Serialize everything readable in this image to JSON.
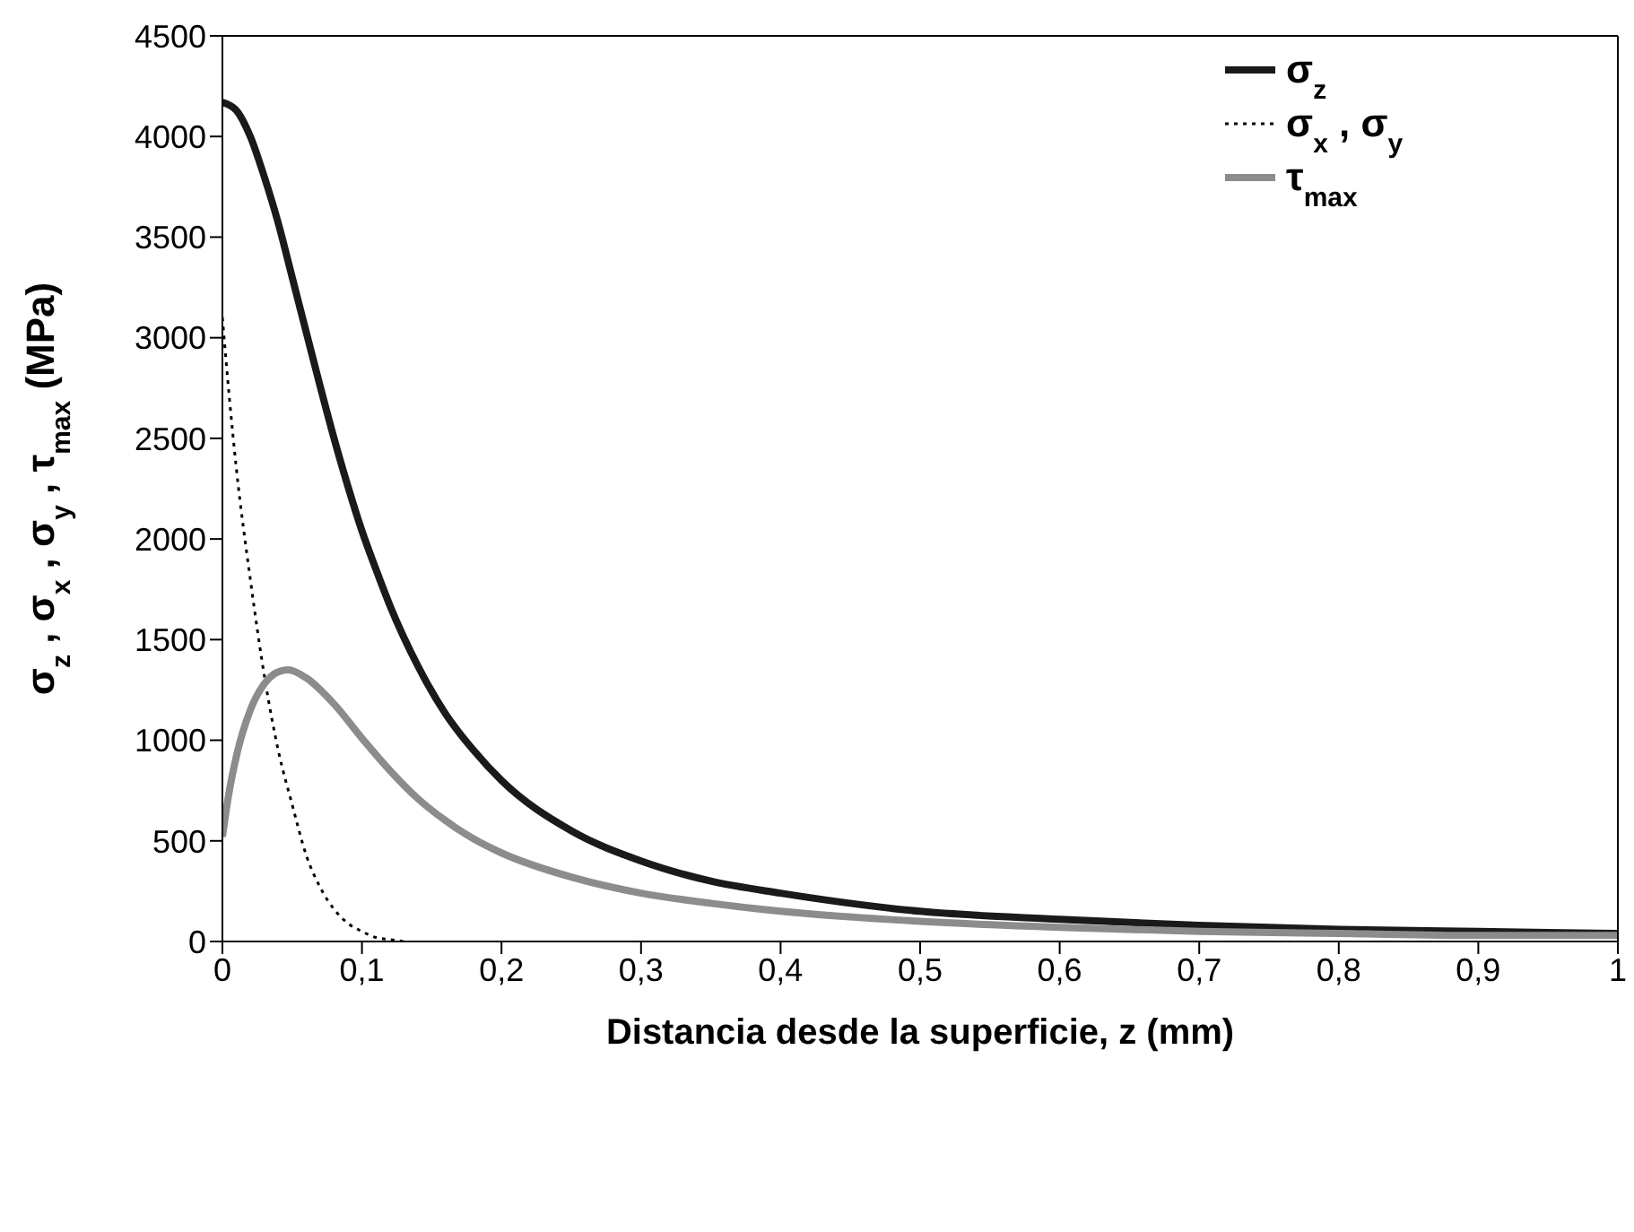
{
  "chart_data": {
    "type": "line",
    "xlabel": "Distancia desde la superficie, z (mm)",
    "ylabel": "σ$_{z}$ , σ$_{x}$ , σ$_{y}$ , τ$_{max}$ (MPa)",
    "xlim": [
      0,
      1
    ],
    "xticks": [
      0,
      {
        "value": 0.1,
        "label": "0,1"
      },
      {
        "value": 0.2,
        "label": "0,2"
      },
      {
        "value": 0.3,
        "label": "0,3"
      },
      {
        "value": 0.4,
        "label": "0,4"
      },
      {
        "value": 0.5,
        "label": "0,5"
      },
      {
        "value": 0.6,
        "label": "0,6"
      },
      {
        "value": 0.7,
        "label": "0,7"
      },
      {
        "value": 0.8,
        "label": "0,8"
      },
      {
        "value": 0.9,
        "label": "0,9"
      },
      1
    ],
    "ylim": [
      0,
      4500
    ],
    "yticks": [
      0,
      500,
      1000,
      1500,
      2000,
      2500,
      3000,
      3500,
      4000,
      4500
    ],
    "legend": "top right",
    "marker": "none",
    "series": [
      {
        "name": "σ$_{z}$",
        "color": "#1a1a1a",
        "line_style": "solid",
        "x": [
          0,
          0.01,
          0.02,
          0.03,
          0.04,
          0.05,
          0.06,
          0.07,
          0.08,
          0.09,
          0.1,
          0.11,
          0.12,
          0.14,
          0.16,
          0.18,
          0.2,
          0.25,
          0.3,
          0.35,
          0.4,
          0.5,
          0.6,
          0.7,
          0.8,
          0.9,
          1
        ],
        "values": [
          4170,
          4130,
          4000,
          3800,
          3570,
          3300,
          3030,
          2760,
          2500,
          2260,
          2040,
          1850,
          1670,
          1370,
          1130,
          950,
          800,
          550,
          400,
          300,
          240,
          150,
          110,
          80,
          60,
          50,
          40
        ]
      },
      {
        "name": "σ$_{x}$ , σ$_{y}$",
        "color": "#000000",
        "line_style": "dotted",
        "x": [
          0,
          0.005,
          0.01,
          0.02,
          0.031,
          0.04,
          0.05,
          0.06,
          0.07,
          0.08,
          0.09,
          0.1,
          0.11,
          0.12,
          0.13
        ],
        "values": [
          3100,
          2700,
          2350,
          1800,
          1280,
          950,
          680,
          430,
          270,
          160,
          90,
          50,
          20,
          10,
          0
        ]
      },
      {
        "name": "τ$_{max}$",
        "color": "#8c8c8c",
        "line_style": "solid",
        "x": [
          0,
          0.005,
          0.01,
          0.02,
          0.03,
          0.04,
          0.047,
          0.06,
          0.08,
          0.1,
          0.12,
          0.14,
          0.16,
          0.18,
          0.2,
          0.25,
          0.3,
          0.35,
          0.4,
          0.5,
          0.6,
          0.7,
          0.8,
          0.9,
          1
        ],
        "values": [
          520,
          750,
          920,
          1150,
          1280,
          1340,
          1350,
          1310,
          1180,
          1010,
          850,
          710,
          600,
          510,
          440,
          320,
          240,
          190,
          150,
          100,
          70,
          50,
          40,
          30,
          30
        ]
      }
    ]
  }
}
